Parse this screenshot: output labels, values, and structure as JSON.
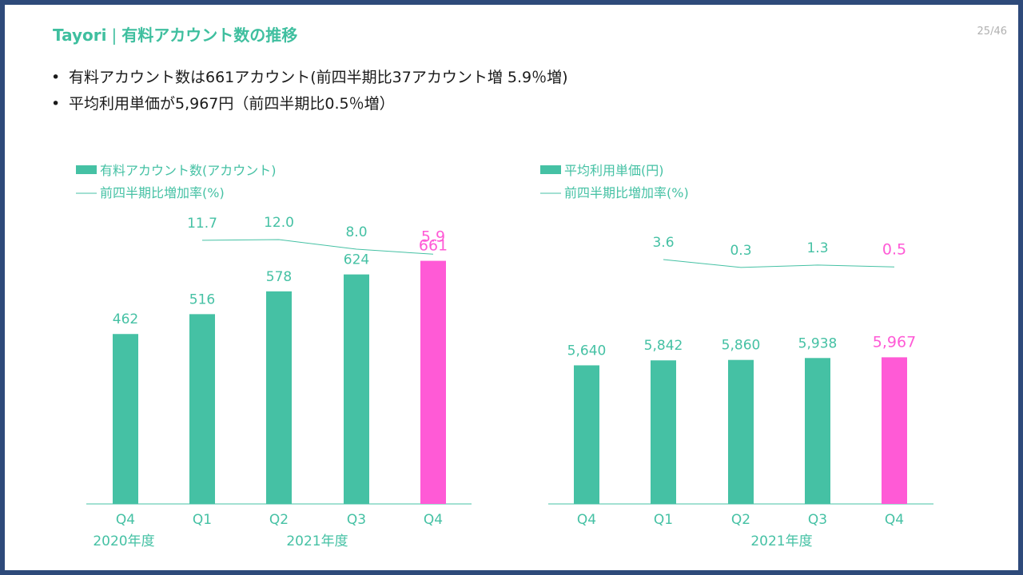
{
  "header": {
    "brand": "Tayori",
    "separator": "|",
    "title": "有料アカウント数の推移",
    "page": "25/46"
  },
  "bullets": [
    "有料アカウント数は661アカウント(前四半期比37アカウント増 5.9％増)",
    "平均利用単価が5,967円（前四半期比0.5％増）"
  ],
  "colors": {
    "teal": "#45c1a4",
    "pink": "#ff5ad6",
    "frame": "#2e4a7a"
  },
  "chart_data": [
    {
      "type": "bar",
      "categories": [
        "Q4",
        "Q1",
        "Q2",
        "Q3",
        "Q4"
      ],
      "year_labels": [
        "2020年度",
        "2021年度"
      ],
      "series": [
        {
          "name": "有料アカウント数(アカウント)",
          "values": [
            462,
            516,
            578,
            624,
            661
          ],
          "value_labels": [
            "462",
            "516",
            "578",
            "624",
            "661"
          ]
        },
        {
          "name": "前四半期比増加率(%)",
          "type": "line",
          "values": [
            null,
            11.7,
            12.0,
            8.0,
            5.9
          ],
          "value_labels": [
            "",
            "11.7",
            "12.0",
            "8.0",
            "5.9"
          ]
        }
      ],
      "highlight_index": 4,
      "ylim": [
        0,
        760
      ],
      "grid": false,
      "legend_position": "top-left"
    },
    {
      "type": "bar",
      "categories": [
        "Q4",
        "Q1",
        "Q2",
        "Q3",
        "Q4"
      ],
      "year_labels": [
        "2021年度"
      ],
      "series": [
        {
          "name": "平均利用単価(円)",
          "values": [
            5640,
            5842,
            5860,
            5938,
            5967
          ],
          "value_labels": [
            "5,640",
            "5,842",
            "5,860",
            "5,938",
            "5,967"
          ]
        },
        {
          "name": "前四半期比増加率(%)",
          "type": "line",
          "values": [
            null,
            3.6,
            0.3,
            1.3,
            0.5
          ],
          "value_labels": [
            "",
            "3.6",
            "0.3",
            "1.3",
            "0.5"
          ]
        }
      ],
      "highlight_index": 4,
      "ylim": [
        0,
        7800
      ],
      "grid": false,
      "legend_position": "top-left"
    }
  ]
}
